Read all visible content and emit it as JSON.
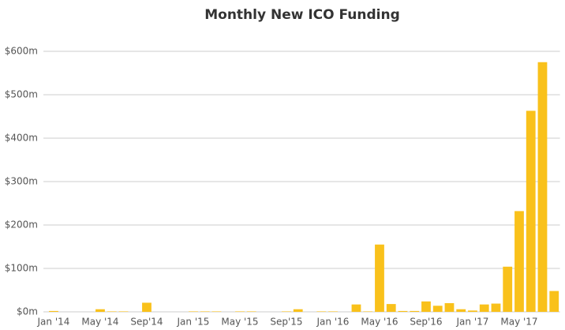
{
  "chart_data": {
    "type": "bar",
    "title": "Monthly New ICO Funding",
    "categories": [
      "Jan '14",
      null,
      null,
      null,
      "May '14",
      null,
      null,
      null,
      "Sep'14",
      null,
      null,
      null,
      "Jan '15",
      null,
      null,
      null,
      "May '15",
      null,
      null,
      null,
      "Sep'15",
      null,
      null,
      null,
      "Jan '16",
      null,
      null,
      null,
      "May '16",
      null,
      null,
      null,
      "Sep'16",
      null,
      null,
      null,
      "Jan '17",
      null,
      null,
      null,
      "May '17",
      null,
      null,
      null
    ],
    "values": [
      2,
      0,
      0,
      0,
      6,
      1,
      1,
      0,
      21,
      0,
      0,
      0,
      1,
      1,
      1,
      0,
      1,
      1,
      0,
      0,
      1,
      6,
      0,
      1,
      1,
      0,
      17,
      1,
      155,
      18,
      2,
      2,
      24,
      14,
      20,
      6,
      3,
      17,
      19,
      104,
      232,
      463,
      575,
      48
    ],
    "color": "#f9c11b",
    "ylim": [
      0,
      600
    ],
    "yticks": [
      {
        "value": 0,
        "label": "$0m"
      },
      {
        "value": 100,
        "label": "$100m"
      },
      {
        "value": 200,
        "label": "$200m"
      },
      {
        "value": 300,
        "label": "$300m"
      },
      {
        "value": 400,
        "label": "$400m"
      },
      {
        "value": 500,
        "label": "$500m"
      },
      {
        "value": 600,
        "label": "$600m"
      }
    ],
    "grid": true
  }
}
